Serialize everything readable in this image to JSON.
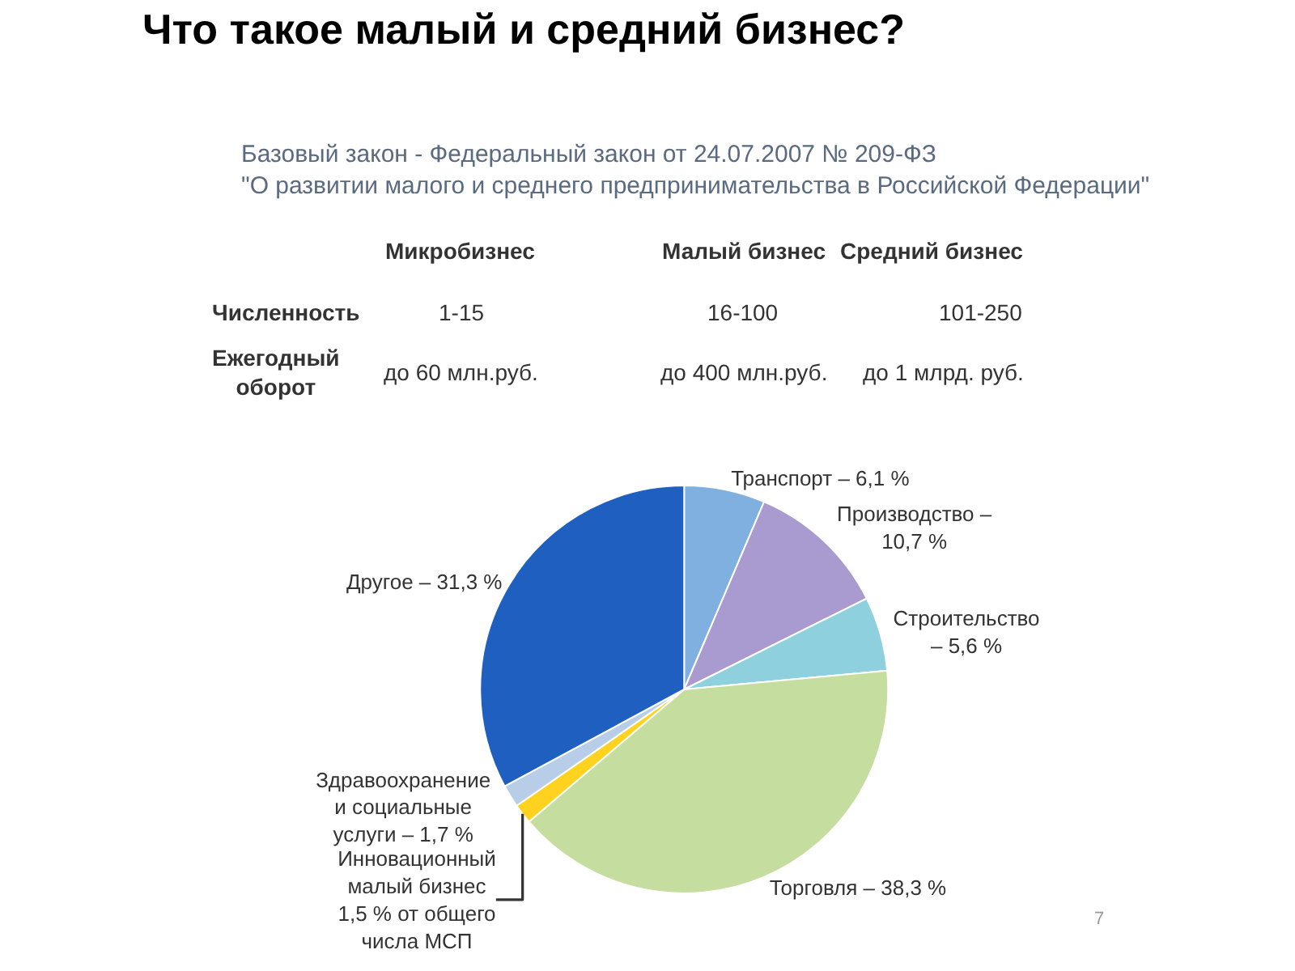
{
  "chart_data": {
    "type": "pie",
    "title": "Что такое малый и средний бизнес?",
    "subtitle": "Базовый закон - Федеральный закон от 24.07.2007 № 209-ФЗ\n\"О развитии малого и среднего предпринимательства в Российской Федерации\"",
    "categories": [
      "Транспорт – 6,1 %",
      "Производство –\n10,7 %",
      "Строительство\n– 5,6 %",
      "Торговля – 38,3 %",
      "Инновационный\nмалый бизнес\n1,5 % от общего\nчисла МСП",
      "Здравоохранение\nи социальные\nуслуги – 1,7 %",
      "Другое – 31,3 %"
    ],
    "values": [
      6.1,
      10.7,
      5.6,
      38.3,
      1.5,
      1.7,
      31.3
    ],
    "colors": [
      "#7fb0e0",
      "#a99bd0",
      "#8fd0de",
      "#c5dea0",
      "#ffd21f",
      "#b8cde8",
      "#1f5fc0"
    ],
    "annotations": [
      "Микробизнес",
      "Малый бизнес",
      "Средний бизнес",
      "Численность",
      "1-15",
      "16-100",
      "101-250",
      "Ежегодный\nоборот",
      "до 60 млн.руб.",
      "до 400 млн.руб.",
      "до 1 млрд. руб.",
      "7"
    ],
    "legend": false
  }
}
